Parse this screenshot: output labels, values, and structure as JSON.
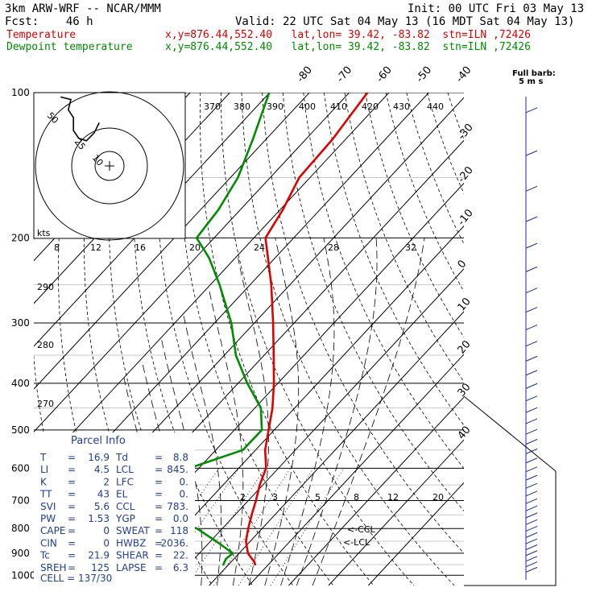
{
  "header": {
    "model": "3km ARW-WRF -- NCAR/MMM",
    "init": "Init: 00 UTC Fri 03 May 13",
    "fcst": "Fcst:    46 h",
    "valid": "Valid: 22 UTC Sat 04 May 13 (16 MDT Sat 04 May 13)",
    "temp_label": "Temperature",
    "temp_loc": "x,y=876.44,552.40   lat,lon= 39.42, -83.82  stn=ILN ,72426",
    "dew_label": "Dewpoint temperature",
    "dew_loc": "x,y=876.44,552.40   lat,lon= 39.42, -83.82  stn=ILN ,72426"
  },
  "colors": {
    "temperature": "#e00000",
    "dewpoint": "#008c00",
    "parcel": "#1f3d99",
    "grid": "#000000"
  },
  "chart_data": {
    "type": "line",
    "title": "",
    "y_axis": {
      "label": "",
      "scale": "log-pressure",
      "unit": "hPa",
      "ticks": [
        100,
        200,
        300,
        400,
        500,
        600,
        700,
        800,
        900,
        1000
      ]
    },
    "isotherm_labels": [
      "-80",
      "-70",
      "-60",
      "-50",
      "-40",
      "-30",
      "-20",
      "-10",
      "0",
      "10",
      "20",
      "30",
      "40"
    ],
    "dry_adiabat_labels": [
      "370",
      "380",
      "390",
      "400",
      "410",
      "420",
      "430",
      "440",
      "290",
      "280",
      "270"
    ],
    "mixing_ratio_labels": [
      "2",
      "3",
      "5",
      "8",
      "12",
      "20"
    ],
    "series": [
      {
        "name": "Temperature",
        "points": [
          [
            954,
            16.9
          ],
          [
            940,
            16.0
          ],
          [
            900,
            12.2
          ],
          [
            850,
            8.9
          ],
          [
            800,
            6.5
          ],
          [
            750,
            4.2
          ],
          [
            700,
            1.9
          ],
          [
            650,
            -0.8
          ],
          [
            600,
            -3.1
          ],
          [
            550,
            -7.6
          ],
          [
            500,
            -11.4
          ],
          [
            450,
            -15.6
          ],
          [
            400,
            -21.0
          ],
          [
            350,
            -27.6
          ],
          [
            300,
            -35.3
          ],
          [
            250,
            -44.7
          ],
          [
            220,
            -51.8
          ],
          [
            200,
            -57.1
          ],
          [
            175,
            -59.3
          ],
          [
            150,
            -62.7
          ],
          [
            125,
            -63.3
          ],
          [
            100,
            -65.4
          ]
        ]
      },
      {
        "name": "Dewpoint temperature",
        "points": [
          [
            954,
            8.8
          ],
          [
            925,
            8.0
          ],
          [
            900,
            8.4
          ],
          [
            850,
            1.4
          ],
          [
            800,
            -6.4
          ],
          [
            750,
            -20.0
          ],
          [
            700,
            -41.0
          ],
          [
            670,
            -62.0
          ],
          [
            650,
            -42.0
          ],
          [
            600,
            -22.4
          ],
          [
            550,
            -13.2
          ],
          [
            500,
            -13.1
          ],
          [
            450,
            -18.5
          ],
          [
            400,
            -27.7
          ],
          [
            350,
            -37.1
          ],
          [
            300,
            -45.8
          ],
          [
            250,
            -57.7
          ],
          [
            220,
            -66.6
          ],
          [
            200,
            -74.4
          ],
          [
            175,
            -75.5
          ],
          [
            150,
            -78.1
          ],
          [
            125,
            -83.3
          ],
          [
            100,
            -90.1
          ]
        ]
      }
    ],
    "level_labels": {
      "lcl": "<-LCL",
      "ccl": "<-CCL"
    },
    "wind_barbs_units": "5 m s",
    "hodograph": {
      "speed_unit": "kts",
      "rings": [
        "10",
        "25",
        "50"
      ],
      "trace": [
        [
          -4,
          3
        ],
        [
          -6,
          -1
        ],
        [
          -9,
          -4
        ],
        [
          -12,
          -3
        ],
        [
          -14,
          0
        ],
        [
          -14,
          5
        ],
        [
          -16,
          8
        ],
        [
          -15,
          12
        ],
        [
          -19,
          13
        ]
      ]
    }
  },
  "barb_legend": {
    "title": "Full barb:",
    "value": "5 m s"
  },
  "hodo_legend": {
    "kts": "kts",
    "ticks": [
      "8",
      "12",
      "16",
      "20",
      "24",
      "28",
      "32"
    ]
  },
  "parcel_info": {
    "title": "Parcel Info",
    "rows": [
      {
        "k1": "T",
        "v1": "16.9",
        "k2": "Td",
        "v2": "8.8"
      },
      {
        "k1": "LI",
        "v1": "4.5",
        "k2": "LCL",
        "v2": "845."
      },
      {
        "k1": "K",
        "v1": "2",
        "k2": "LFC",
        "v2": "0."
      },
      {
        "k1": "TT",
        "v1": "43",
        "k2": "EL",
        "v2": "0."
      },
      {
        "k1": "SVI",
        "v1": "5.6",
        "k2": "CCL",
        "v2": "783."
      },
      {
        "k1": "PW",
        "v1": "1.53",
        "k2": "YGP",
        "v2": "0.0"
      },
      {
        "k1": "CAPE",
        "v1": "0",
        "k2": "SWEAT",
        "v2": "118"
      },
      {
        "k1": "CIN",
        "v1": "0",
        "k2": "HWBZ",
        "v2": "2036."
      },
      {
        "k1": "Tc",
        "v1": "21.9",
        "k2": "SHEAR",
        "v2": "22."
      },
      {
        "k1": "SREH",
        "v1": "125",
        "k2": "LAPSE",
        "v2": "6.3"
      }
    ],
    "cell": "CELL = 137/30"
  }
}
